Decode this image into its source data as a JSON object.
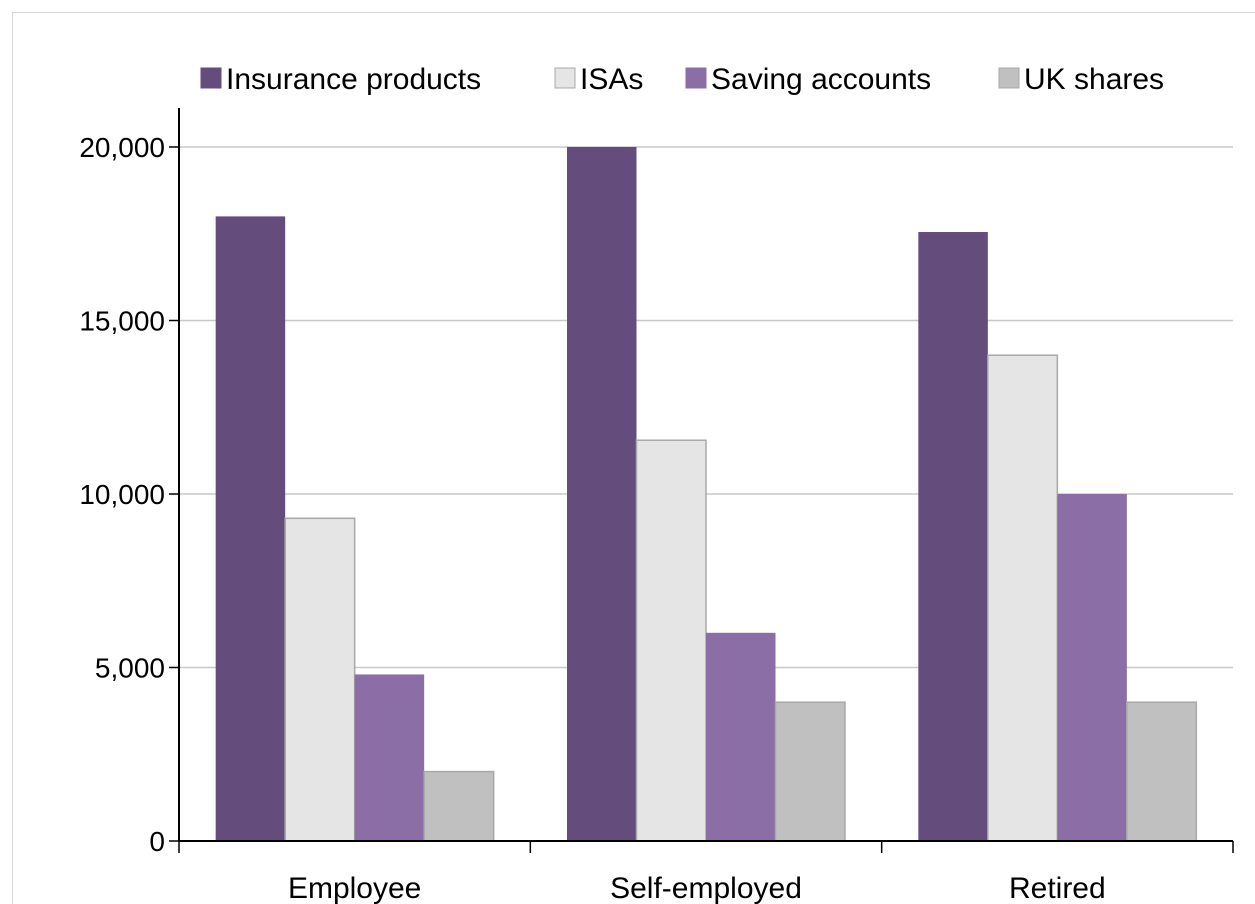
{
  "chart_data": {
    "type": "bar",
    "title": "",
    "xlabel": "",
    "ylabel": "",
    "categories": [
      "Employee",
      "Self-employed",
      "Retired"
    ],
    "series": [
      {
        "name": "Insurance products",
        "color": "#644d7d",
        "values": [
          18000,
          20000,
          17550
        ]
      },
      {
        "name": "ISAs",
        "color": "#e5e5e5",
        "values": [
          9300,
          11550,
          14000
        ]
      },
      {
        "name": "Saving accounts",
        "color": "#8a6ea5",
        "values": [
          4800,
          6000,
          10000
        ]
      },
      {
        "name": "UK shares",
        "color": "#c0c0c0",
        "values": [
          2000,
          4000,
          4000
        ]
      }
    ],
    "ylim": [
      0,
      20000
    ],
    "yticks": [
      0,
      5000,
      10000,
      15000,
      20000
    ],
    "ytick_labels": [
      "0",
      "5,000",
      "10,000",
      "15,000",
      "20,000"
    ],
    "grid": true,
    "legend_position": "top"
  }
}
